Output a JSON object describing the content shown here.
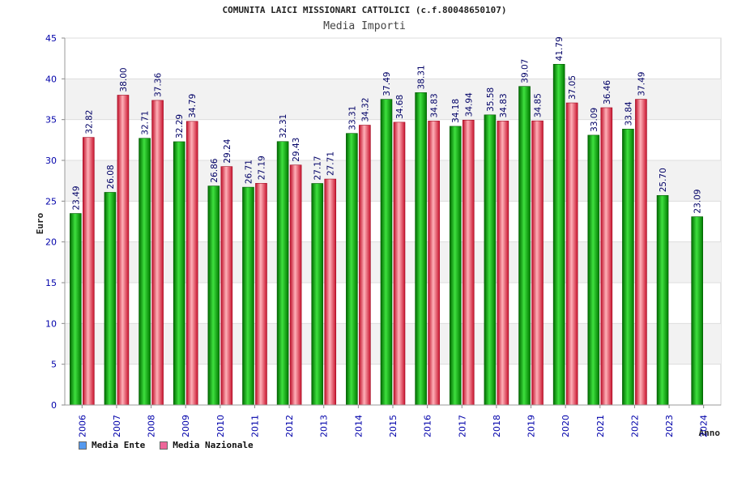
{
  "colors": {
    "ente": "#00a000",
    "nazionale": "#e8334a",
    "axis": "#0000aa",
    "grid_band": "#f2f2f2"
  },
  "legend": {
    "ente": "Media Ente",
    "nazionale": "Media Nazionale"
  },
  "chart_data": {
    "type": "bar",
    "title": "COMUNITA LAICI MISSIONARI CATTOLICI (c.f.80048650107)",
    "subtitle": "Media Importi",
    "xlabel": "Anno",
    "ylabel": "Euro",
    "ylim": [
      0,
      45
    ],
    "yticks": [
      0,
      5,
      10,
      15,
      20,
      25,
      30,
      35,
      40,
      45
    ],
    "grid": true,
    "legend_position": "bottom-left",
    "categories": [
      "2006",
      "2007",
      "2008",
      "2009",
      "2010",
      "2011",
      "2012",
      "2013",
      "2014",
      "2015",
      "2016",
      "2017",
      "2018",
      "2019",
      "2020",
      "2021",
      "2022",
      "2023",
      "2024"
    ],
    "series": [
      {
        "name": "Media Ente",
        "values": [
          23.49,
          26.08,
          32.71,
          32.29,
          26.86,
          26.71,
          32.31,
          27.17,
          33.31,
          37.49,
          38.31,
          34.18,
          35.58,
          39.07,
          41.79,
          33.09,
          33.84,
          25.7,
          23.09
        ]
      },
      {
        "name": "Media Nazionale",
        "values": [
          32.82,
          38.0,
          37.36,
          34.79,
          29.24,
          27.19,
          29.43,
          27.71,
          34.32,
          34.68,
          34.83,
          34.94,
          34.83,
          34.85,
          37.05,
          36.46,
          37.49,
          null,
          null
        ]
      }
    ]
  }
}
